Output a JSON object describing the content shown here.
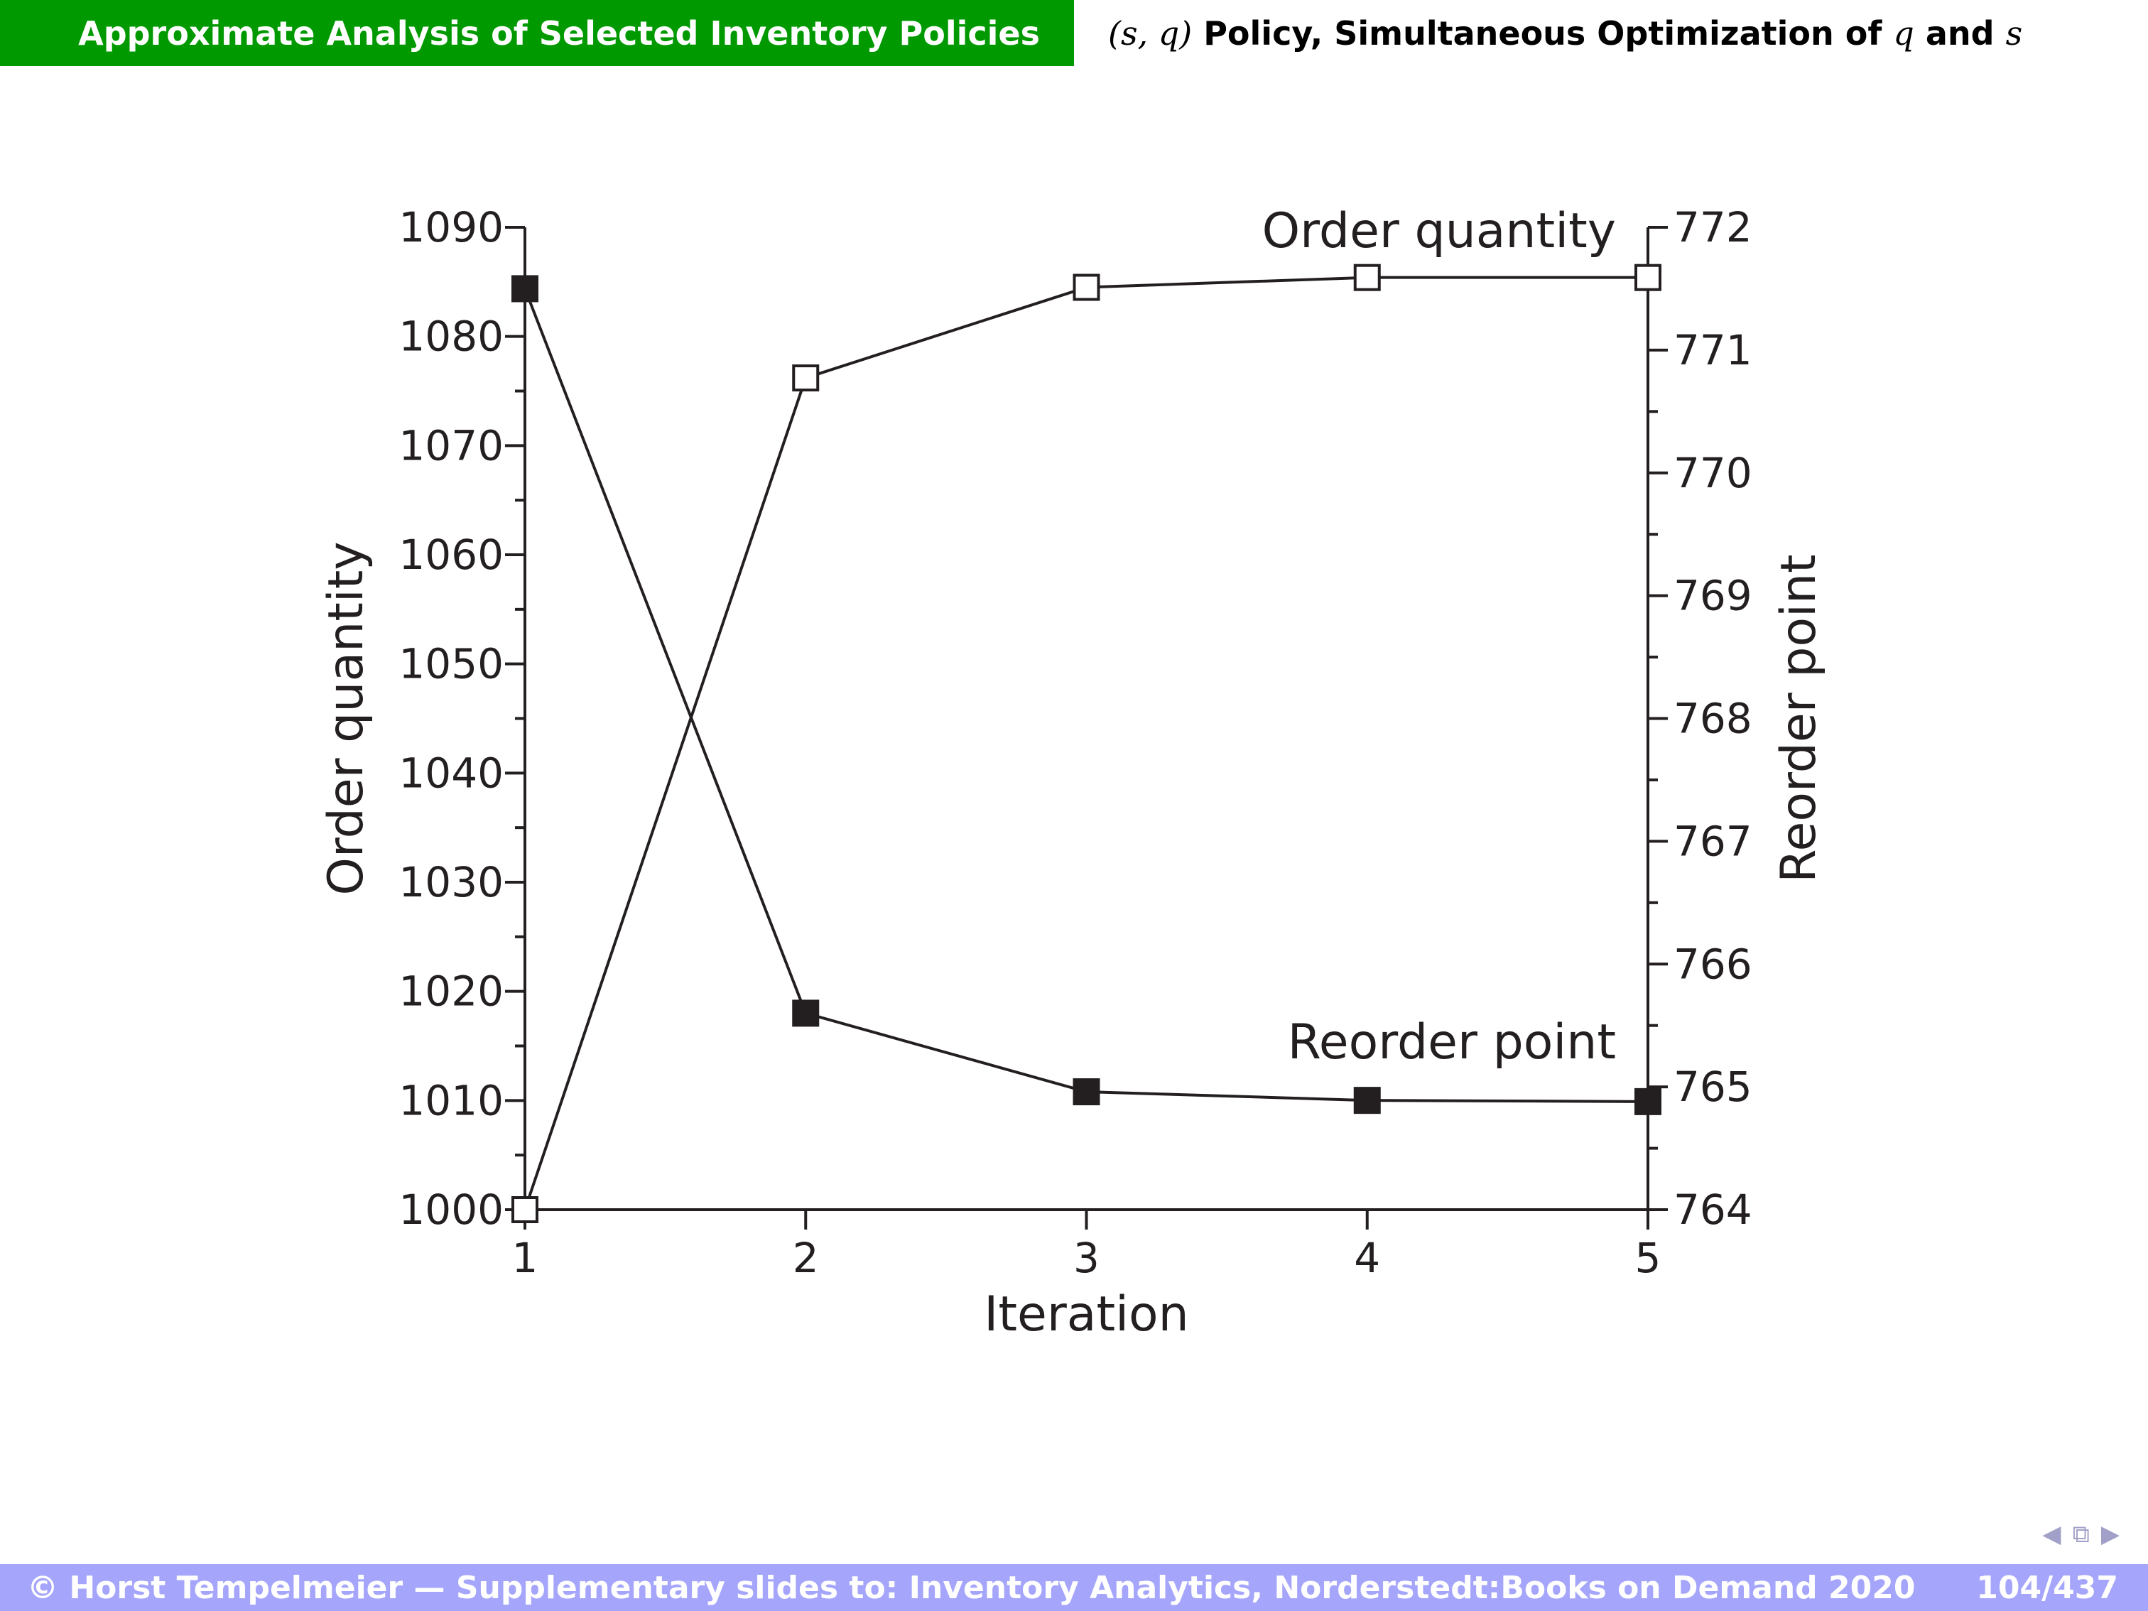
{
  "header": {
    "section": "Approximate Analysis of Selected Inventory Policies",
    "subsection_prefix": "(s, q)",
    "subsection_text": "Policy, Simultaneous Optimization of",
    "var_q": "q",
    "and": "and",
    "var_s": "s"
  },
  "footer": {
    "copyright": "© Horst Tempelmeier — Supplementary slides to: Inventory Analytics, Norderstedt:Books on Demand 2020",
    "page": "104/437"
  },
  "nav": {
    "prev_icon": "triangle-left-icon",
    "frame_icon": "frames-icon",
    "next_icon": "triangle-right-icon"
  },
  "chart_data": {
    "type": "line",
    "xlabel": "Iteration",
    "ylabel": "Order quantity",
    "y2label": "Reorder point",
    "x": [
      1,
      2,
      3,
      4,
      5
    ],
    "xlim": [
      1,
      5
    ],
    "ylim": [
      1000,
      1090
    ],
    "y2lim": [
      764,
      772
    ],
    "yticks": [
      1000,
      1010,
      1020,
      1030,
      1040,
      1050,
      1060,
      1070,
      1080,
      1090
    ],
    "y2ticks": [
      764,
      765,
      766,
      767,
      768,
      769,
      770,
      771,
      772
    ],
    "grid": false,
    "series": [
      {
        "name": "Order quantity",
        "axis": "left",
        "marker": "open-square",
        "values": [
          1000,
          1076.2,
          1084.5,
          1085.4,
          1085.4
        ]
      },
      {
        "name": "Reorder point",
        "axis": "right",
        "marker": "filled-square",
        "values": [
          771.5,
          765.6,
          764.96,
          764.89,
          764.88
        ]
      }
    ]
  }
}
